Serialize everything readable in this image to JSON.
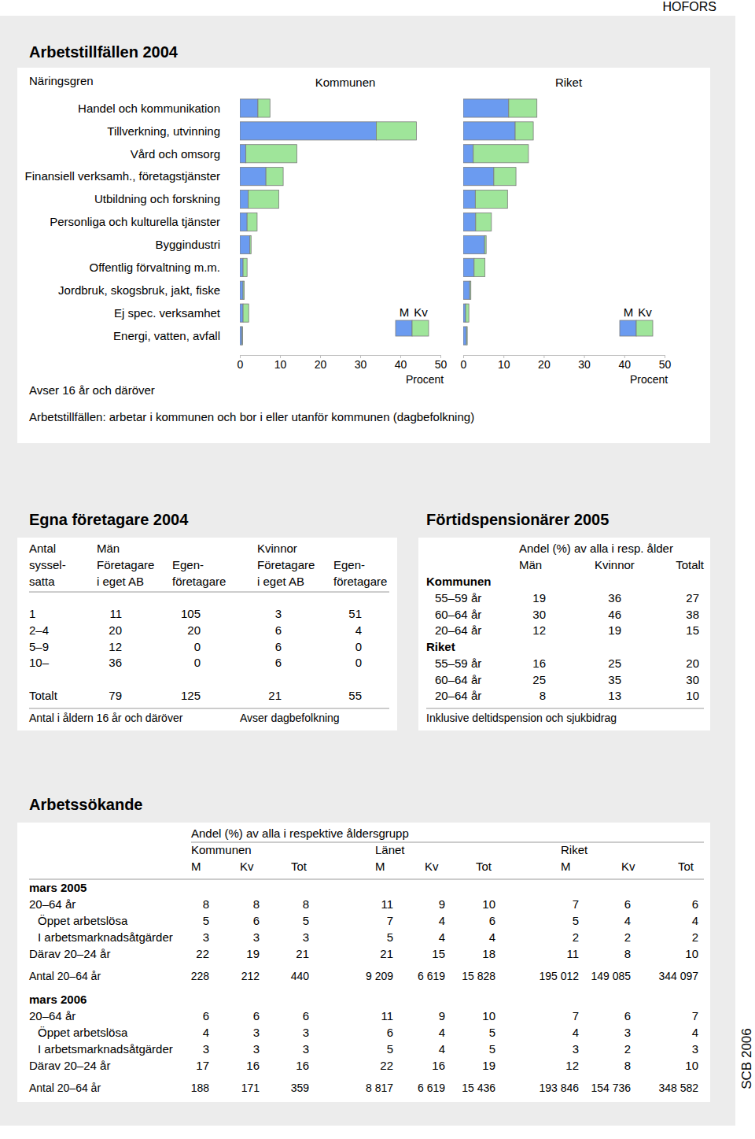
{
  "page": {
    "region": "HOFORS",
    "source": "SCB 2006"
  },
  "chart_data": {
    "type": "bar",
    "orientation": "horizontal",
    "stacked": true,
    "title": "Arbetstillfällen 2004",
    "y_label": "Näringsgren",
    "x_label": "Procent",
    "annotations": [
      "Avser 16 år och däröver",
      "Arbetstillfällen: arbetar i kommunen och bor i eller utanför kommunen (dagbefolkning)"
    ],
    "categories": [
      "Handel och kommunikation",
      "Tillverkning, utvinning",
      "Vård och omsorg",
      "Finansiell verksamh., företagstjänster",
      "Utbildning och forskning",
      "Personliga och kulturella tjänster",
      "Byggindustri",
      "Offentlig förvaltning m.m.",
      "Jordbruk, skogsbruk, jakt, fiske",
      "Ej spec. verksamhet",
      "Energi, vatten, avfall"
    ],
    "panels": [
      {
        "title": "Kommunen",
        "series": [
          {
            "name": "M",
            "color": "#6b9bf0",
            "values": [
              4.5,
              34,
              1.5,
              6.5,
              2.1,
              1.8,
              2.5,
              0.8,
              0.8,
              0.8,
              0.5
            ]
          },
          {
            "name": "Kv",
            "color": "#9fe59a",
            "values": [
              3,
              10,
              12.7,
              4.3,
              7.6,
              2.5,
              0.3,
              1,
              0.3,
              1.4,
              0.2
            ]
          }
        ]
      },
      {
        "title": "Riket",
        "series": [
          {
            "name": "M",
            "color": "#6b9bf0",
            "values": [
              11.3,
              12.9,
              2.5,
              7.6,
              3,
              3.1,
              5.3,
              2.7,
              1.6,
              0.6,
              0.8
            ]
          },
          {
            "name": "Kv",
            "color": "#9fe59a",
            "values": [
              7,
              4.5,
              13.7,
              5.5,
              8,
              3.9,
              0.4,
              2.7,
              0.3,
              0.8,
              0.2
            ]
          }
        ]
      }
    ],
    "xlim": [
      0,
      50
    ],
    "xticks": [
      0,
      10,
      20,
      30,
      40,
      50
    ],
    "legend": "bottom-right"
  },
  "egna_foretagare": {
    "title": "Egna företagare 2004",
    "row_header": [
      "Antal",
      "syssel-",
      "satta"
    ],
    "groups": [
      "Män",
      "Kvinnor"
    ],
    "columns": [
      [
        "Företagare",
        "i eget AB"
      ],
      [
        "Egen-",
        "företagare"
      ],
      [
        "Företagare",
        "i eget AB"
      ],
      [
        "Egen-",
        "företagare"
      ]
    ],
    "rows": [
      [
        "1",
        11,
        105,
        3,
        51
      ],
      [
        "2–4",
        20,
        20,
        6,
        4
      ],
      [
        "5–9",
        12,
        0,
        6,
        0
      ],
      [
        "10–",
        36,
        0,
        6,
        0
      ],
      [
        "Totalt",
        79,
        125,
        21,
        55
      ]
    ],
    "notes": [
      "Antal i åldern 16 år och däröver",
      "Avser dagbefolkning"
    ]
  },
  "fortidspensionarer": {
    "title": "Förtidspensionärer 2005",
    "header": "Andel (%) av alla i resp. ålder",
    "columns": [
      "Män",
      "Kvinnor",
      "Totalt"
    ],
    "groups": [
      {
        "name": "Kommunen",
        "rows": [
          [
            "55–59 år",
            19,
            36,
            27
          ],
          [
            "60–64 år",
            30,
            46,
            38
          ],
          [
            "20–64 år",
            12,
            19,
            15
          ]
        ]
      },
      {
        "name": "Riket",
        "rows": [
          [
            "55–59 år",
            16,
            25,
            20
          ],
          [
            "60–64 år",
            25,
            35,
            30
          ],
          [
            "20–64 år",
            8,
            13,
            10
          ]
        ]
      }
    ],
    "note": "Inklusive deltidspension och sjukbidrag"
  },
  "arbetssokande": {
    "title": "Arbetssökande",
    "header": "Andel (%) av alla i respektive åldersgrupp",
    "regions": [
      "Kommunen",
      "Länet",
      "Riket"
    ],
    "columns": [
      "M",
      "Kv",
      "Tot"
    ],
    "periods": [
      {
        "name": "mars 2005",
        "rows": [
          {
            "label": "20–64 år",
            "values": [
              8,
              8,
              8,
              11,
              9,
              10,
              7,
              6,
              6
            ]
          },
          {
            "label": "Öppet arbetslösa",
            "values": [
              5,
              6,
              5,
              7,
              4,
              6,
              5,
              4,
              4
            ]
          },
          {
            "label": "I arbetsmarknadsåtgärder",
            "values": [
              3,
              3,
              3,
              5,
              4,
              4,
              2,
              2,
              2
            ]
          },
          {
            "label": "Därav 20–24 år",
            "values": [
              22,
              19,
              21,
              21,
              15,
              18,
              11,
              8,
              10
            ]
          }
        ],
        "count": {
          "label": "Antal 20–64 år",
          "values": [
            "228",
            "212",
            "440",
            "9 209",
            "6 619",
            "15 828",
            "195 012",
            "149 085",
            "344 097"
          ]
        }
      },
      {
        "name": "mars 2006",
        "rows": [
          {
            "label": "20–64 år",
            "values": [
              6,
              6,
              6,
              11,
              9,
              10,
              7,
              6,
              7
            ]
          },
          {
            "label": "Öppet arbetslösa",
            "values": [
              4,
              3,
              3,
              6,
              4,
              5,
              4,
              3,
              4
            ]
          },
          {
            "label": "I arbetsmarknadsåtgärder",
            "values": [
              3,
              3,
              3,
              5,
              4,
              5,
              3,
              2,
              3
            ]
          },
          {
            "label": "Därav 20–24 år",
            "values": [
              17,
              16,
              16,
              22,
              16,
              19,
              12,
              8,
              10
            ]
          }
        ],
        "count": {
          "label": "Antal 20–64 år",
          "values": [
            "188",
            "171",
            "359",
            "8 817",
            "6 619",
            "15 436",
            "193 846",
            "154 736",
            "348 582"
          ]
        }
      }
    ]
  }
}
